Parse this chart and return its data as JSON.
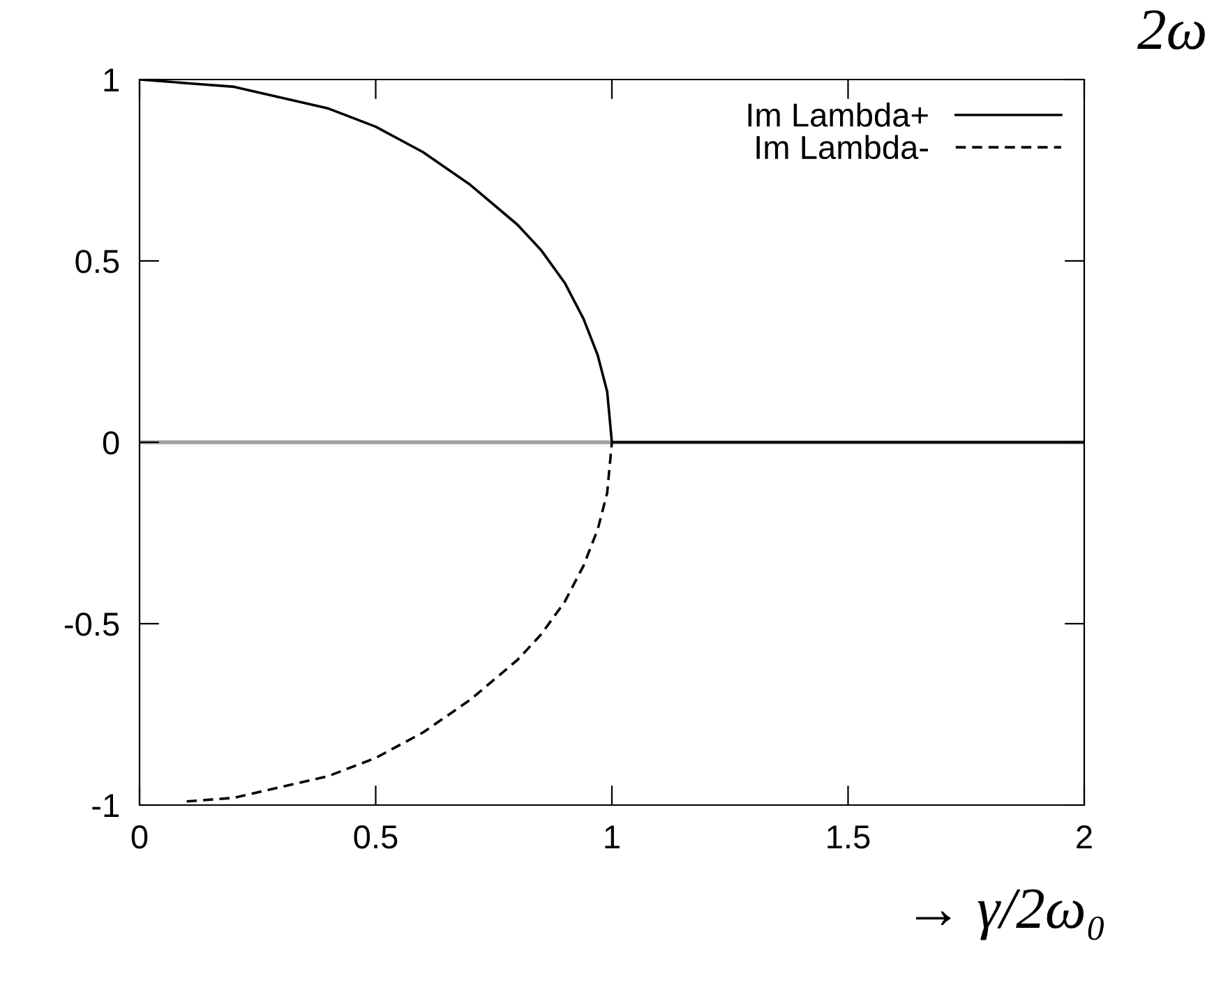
{
  "chart_data": {
    "type": "line",
    "xlabel": "→ γ/2ω₀",
    "annotations": [
      "2ω"
    ],
    "xlim": [
      0,
      2
    ],
    "xticks": [
      0,
      0.5,
      1,
      1.5,
      2
    ],
    "ylim": [
      -1,
      1
    ],
    "yticks": [
      -1,
      -0.5,
      0,
      0.5,
      1
    ],
    "grid": false,
    "legend": "top right",
    "marker": "none",
    "ref_lines": [
      {
        "axis": "y",
        "value": 0,
        "color": "#a0a0a0"
      }
    ],
    "series": [
      {
        "name": "Im Lambda+",
        "color": "#000000",
        "line_style": "solid",
        "x": [
          0,
          0.1,
          0.2,
          0.3,
          0.4,
          0.5,
          0.6,
          0.7,
          0.8,
          0.85,
          0.9,
          0.94,
          0.97,
          0.99,
          1.0,
          2.0
        ],
        "values": [
          1,
          0.99,
          0.98,
          0.95,
          0.92,
          0.87,
          0.8,
          0.71,
          0.6,
          0.53,
          0.44,
          0.34,
          0.24,
          0.14,
          0,
          0
        ]
      },
      {
        "name": "Im Lambda-",
        "color": "#000000",
        "line_style": "dashed",
        "x": [
          0.1,
          0.2,
          0.3,
          0.4,
          0.5,
          0.6,
          0.7,
          0.8,
          0.85,
          0.9,
          0.94,
          0.97,
          0.99,
          1.0
        ],
        "values": [
          -0.99,
          -0.98,
          -0.95,
          -0.92,
          -0.87,
          -0.8,
          -0.71,
          -0.6,
          -0.53,
          -0.44,
          -0.34,
          -0.24,
          -0.14,
          0
        ]
      }
    ]
  }
}
